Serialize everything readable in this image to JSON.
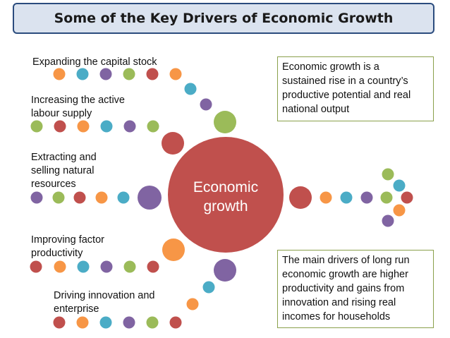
{
  "title": "Some of the Key Drivers of Economic Growth",
  "center": {
    "line1": "Economic",
    "line2": "growth"
  },
  "drivers": [
    {
      "line1": "Expanding the capital stock",
      "line2": ""
    },
    {
      "line1": "Increasing the active",
      "line2": "labour supply"
    },
    {
      "line1": "Extracting and",
      "line2": "selling natural",
      "line3": "resources"
    },
    {
      "line1": "Improving factor",
      "line2": "productivity"
    },
    {
      "line1": "Driving innovation and",
      "line2": "enterprise"
    }
  ],
  "definition_box": {
    "lines": [
      "Economic growth is a",
      "sustained rise in a country’s",
      "productive potential and real",
      "national output"
    ]
  },
  "drivers_box": {
    "lines": [
      "The main drivers of long run",
      "economic growth are higher",
      "productivity and gains from",
      "innovation and rising real",
      "incomes for households"
    ]
  },
  "colors": {
    "orange": "#f79646",
    "teal": "#4bacc6",
    "purple": "#8064a2",
    "green": "#9bbb59",
    "red": "#c0504d",
    "title_fill": "#dbe3ef",
    "title_border": "#2b4c7e",
    "box_border": "#8aa04b"
  }
}
